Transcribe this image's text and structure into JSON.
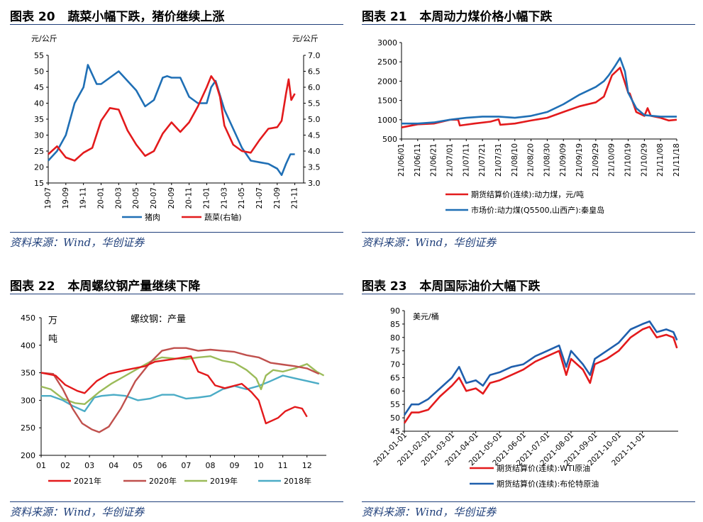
{
  "chart_data": [
    {
      "type": "line",
      "title_num": "图表 20",
      "title": "蔬菜小幅下跌，猪价继续上涨",
      "ylabel_left": "元/公斤",
      "ylabel_right": "元/公斤",
      "ylim_left": [
        15,
        55
      ],
      "yticks_left": [
        "15",
        "20",
        "25",
        "30",
        "35",
        "40",
        "45",
        "50",
        "55"
      ],
      "ylim_right": [
        3.0,
        7.0
      ],
      "yticks_right": [
        "3.0",
        "3.5",
        "4.0",
        "4.5",
        "5.0",
        "5.5",
        "6.0",
        "6.5",
        "7.0"
      ],
      "xlim": [
        0,
        29
      ],
      "x_ticks": [
        "19-07",
        "19-09",
        "19-11",
        "20-01",
        "20-03",
        "20-05",
        "20-07",
        "20-09",
        "20-11",
        "21-01",
        "21-03",
        "21-05",
        "21-07",
        "21-09",
        "21-11"
      ],
      "series": [
        {
          "name": "猪肉",
          "axis": "left",
          "color": "#1f6fb5",
          "x": [
            0,
            1,
            2,
            3,
            4,
            4.5,
            5,
            5.5,
            6,
            7,
            8,
            9,
            10,
            11,
            12,
            13,
            13.5,
            14,
            15,
            16,
            17,
            18,
            18.5,
            19,
            20,
            21,
            22,
            23,
            24,
            25,
            26,
            26.5,
            27,
            27.5,
            28
          ],
          "y": [
            22,
            25,
            30,
            40,
            45,
            52,
            49,
            46,
            46,
            48,
            50,
            47,
            44,
            39,
            41,
            48,
            48.5,
            48,
            48,
            42,
            40,
            40,
            45,
            47,
            38,
            32,
            26,
            22,
            21.5,
            21,
            19.5,
            17.5,
            21,
            24,
            24
          ]
        },
        {
          "name": "蔬菜(右轴)",
          "axis": "right",
          "color": "#e31a1c",
          "x": [
            0,
            1,
            2,
            3,
            4,
            5,
            6,
            7,
            8,
            9,
            10,
            11,
            12,
            13,
            14,
            15,
            16,
            17,
            18,
            18.5,
            19,
            19.5,
            20,
            21,
            22,
            23,
            24,
            25,
            26,
            26.5,
            27,
            27.3,
            27.6,
            28
          ],
          "y": [
            3.9,
            4.15,
            3.8,
            3.7,
            3.95,
            4.1,
            4.95,
            5.35,
            5.3,
            4.65,
            4.2,
            3.85,
            4.0,
            4.55,
            4.9,
            4.6,
            4.9,
            5.4,
            6.0,
            6.35,
            6.15,
            5.7,
            4.8,
            4.2,
            4.0,
            3.95,
            4.35,
            4.7,
            4.75,
            4.95,
            5.8,
            6.25,
            5.6,
            5.8
          ]
        }
      ]
    },
    {
      "type": "line",
      "title_num": "图表 21",
      "title": "本周动力煤价格小幅下跌",
      "ylim": [
        500,
        3000
      ],
      "yticks": [
        "500",
        "1000",
        "1500",
        "2000",
        "2500",
        "3000"
      ],
      "xlim": [
        0,
        170
      ],
      "x_ticks": [
        "21/06/01",
        "21/06/11",
        "21/06/21",
        "21/07/01",
        "21/07/11",
        "21/07/21",
        "21/07/31",
        "21/08/10",
        "21/08/20",
        "21/08/30",
        "21/09/09",
        "21/09/19",
        "21/09/29",
        "21/10/09",
        "21/10/19",
        "21/10/29",
        "21/11/08",
        "21/11/18"
      ],
      "series": [
        {
          "name": "期货结算价(连续):动力煤，元/吨",
          "color": "#e31a1c",
          "x": [
            0,
            10,
            20,
            30,
            35,
            36,
            45,
            55,
            60,
            61,
            70,
            80,
            90,
            100,
            110,
            120,
            125,
            130,
            135,
            140,
            141,
            145,
            150,
            152,
            154,
            160,
            165,
            170
          ],
          "y": [
            800,
            880,
            900,
            1000,
            1000,
            850,
            900,
            950,
            1010,
            870,
            900,
            980,
            1050,
            1200,
            1350,
            1450,
            1600,
            2150,
            2350,
            1700,
            1680,
            1200,
            1100,
            1300,
            1100,
            1050,
            980,
            1000
          ]
        },
        {
          "name": "市场价:动力煤(Q5500,山西产):秦皇岛",
          "color": "#1f6fb5",
          "x": [
            0,
            10,
            20,
            30,
            40,
            50,
            60,
            70,
            80,
            90,
            100,
            110,
            120,
            125,
            128,
            132,
            135,
            138,
            140,
            145,
            150,
            160,
            170
          ],
          "y": [
            900,
            900,
            930,
            1000,
            1050,
            1080,
            1080,
            1050,
            1100,
            1200,
            1400,
            1650,
            1850,
            2000,
            2150,
            2400,
            2600,
            2250,
            1700,
            1300,
            1120,
            1080,
            1080
          ]
        }
      ]
    },
    {
      "type": "line",
      "title_num": "图表 22",
      "title": "本周螺纹钢产量继续下降",
      "annotation": "螺纹钢：产量",
      "ylabel_1": "万",
      "ylabel_2": "吨",
      "ylim": [
        200,
        450
      ],
      "yticks": [
        "200",
        "250",
        "300",
        "350",
        "400",
        "450"
      ],
      "xlim": [
        0,
        11.8
      ],
      "x_ticks": [
        "01",
        "02",
        "03",
        "04",
        "05",
        "06",
        "07",
        "08",
        "09",
        "10",
        "11",
        "12"
      ],
      "series": [
        {
          "name": "2021年",
          "color": "#e31a1c",
          "x": [
            0,
            0.6,
            1,
            1.5,
            1.8,
            2.3,
            2.8,
            3.5,
            4.3,
            4.7,
            5.5,
            5.9,
            6.2,
            6.5,
            6.9,
            7.2,
            7.6,
            8.3,
            8.7,
            9.0,
            9.3,
            9.8,
            10.1,
            10.5,
            10.8,
            11.0
          ],
          "y": [
            350,
            345,
            328,
            317,
            313,
            335,
            348,
            355,
            362,
            370,
            375,
            378,
            380,
            352,
            345,
            327,
            322,
            330,
            315,
            300,
            258,
            268,
            280,
            288,
            285,
            270
          ]
        },
        {
          "name": "2020年",
          "color": "#c0504d",
          "x": [
            0,
            0.5,
            0.9,
            1.3,
            1.7,
            2.1,
            2.4,
            2.8,
            3.3,
            3.9,
            4.5,
            5.0,
            5.5,
            6.0,
            6.5,
            7.0,
            7.5,
            8.0,
            8.5,
            9.0,
            9.5,
            10.0,
            10.5,
            11.0,
            11.5
          ],
          "y": [
            350,
            348,
            320,
            285,
            258,
            247,
            242,
            252,
            285,
            335,
            368,
            390,
            395,
            395,
            390,
            392,
            390,
            388,
            382,
            378,
            368,
            365,
            362,
            358,
            348
          ]
        },
        {
          "name": "2019年",
          "color": "#9bbb59",
          "x": [
            0,
            0.4,
            0.9,
            1.4,
            1.8,
            2.4,
            2.9,
            3.5,
            4.1,
            4.6,
            5.0,
            5.5,
            6.0,
            6.5,
            7.0,
            7.5,
            8.0,
            8.5,
            8.9,
            9.1,
            9.3,
            9.6,
            10.0,
            10.5,
            11.0,
            11.4,
            11.7
          ],
          "y": [
            325,
            320,
            303,
            295,
            293,
            315,
            330,
            345,
            360,
            372,
            378,
            376,
            375,
            378,
            380,
            372,
            368,
            355,
            340,
            320,
            345,
            355,
            352,
            358,
            366,
            352,
            345
          ]
        },
        {
          "name": "2018年",
          "color": "#4bacc6",
          "x": [
            0,
            0.4,
            0.9,
            1.3,
            1.8,
            2.2,
            2.5,
            3.0,
            3.5,
            4.0,
            4.5,
            5.0,
            5.5,
            6.0,
            6.5,
            7.0,
            7.5,
            8.0,
            8.5,
            9.0,
            9.5,
            10.0,
            10.5,
            11.0,
            11.5
          ],
          "y": [
            308,
            308,
            300,
            290,
            280,
            305,
            308,
            310,
            308,
            300,
            303,
            310,
            310,
            303,
            305,
            308,
            320,
            326,
            320,
            326,
            335,
            345,
            340,
            335,
            330
          ]
        }
      ]
    },
    {
      "type": "line",
      "title_num": "图表 23",
      "title": "本周国际油价大幅下跌",
      "ylabel": "美元/桶",
      "ylim": [
        45,
        90
      ],
      "yticks": [
        "45",
        "50",
        "55",
        "60",
        "65",
        "70",
        "75",
        "80",
        "85",
        "90"
      ],
      "xlim": [
        0,
        11.5
      ],
      "x_ticks": [
        "2021-01-01",
        "2021-02-01",
        "2021-03-01",
        "2021-04-01",
        "2021-05-01",
        "2021-06-01",
        "2021-07-01",
        "2021-08-01",
        "2021-09-01",
        "2021-10-01",
        "2021-11-01"
      ],
      "series": [
        {
          "name": "期货结算价(连续):WTI原油",
          "color": "#e31a1c",
          "x": [
            0,
            0.3,
            0.6,
            1.0,
            1.5,
            2.0,
            2.3,
            2.6,
            3.0,
            3.3,
            3.6,
            4.0,
            4.5,
            5.0,
            5.5,
            6.0,
            6.5,
            6.8,
            7.0,
            7.5,
            7.8,
            8.0,
            8.5,
            9.0,
            9.5,
            10.0,
            10.3,
            10.6,
            11.0,
            11.3,
            11.45
          ],
          "y": [
            48,
            52,
            52,
            53,
            58,
            62,
            65,
            60,
            61,
            59,
            63,
            64,
            66,
            68,
            71,
            73,
            75,
            66,
            72,
            68,
            63,
            70,
            72,
            75,
            80,
            83,
            84,
            80,
            81,
            80,
            76
          ]
        },
        {
          "name": "期货结算价(连续):布伦特原油",
          "color": "#1f5fad",
          "x": [
            0,
            0.3,
            0.6,
            1.0,
            1.5,
            2.0,
            2.3,
            2.6,
            3.0,
            3.3,
            3.6,
            4.0,
            4.5,
            5.0,
            5.5,
            6.0,
            6.5,
            6.8,
            7.0,
            7.5,
            7.8,
            8.0,
            8.5,
            9.0,
            9.5,
            10.0,
            10.3,
            10.6,
            11.0,
            11.3,
            11.45
          ],
          "y": [
            51,
            55,
            55,
            57,
            61,
            65,
            69,
            63,
            64,
            62,
            66,
            67,
            69,
            70,
            73,
            75,
            77,
            69,
            75,
            70,
            66,
            72,
            75,
            78,
            83,
            85,
            86,
            82,
            83,
            82,
            79
          ]
        }
      ]
    }
  ],
  "sources": [
    "资料来源：Wind，华创证券",
    "资料来源：Wind，华创证券",
    "资料来源：Wind，华创证券",
    "资料来源：Wind，华创证券"
  ],
  "colors": {
    "title_rule": "#1f3f7a",
    "source_text": "#1f3f7a"
  }
}
